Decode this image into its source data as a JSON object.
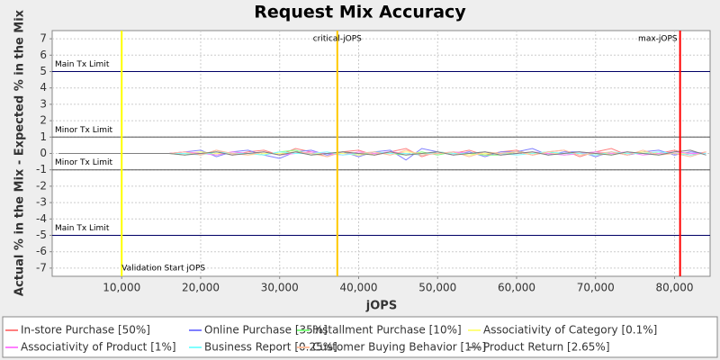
{
  "chart_data": {
    "type": "line",
    "title": "Request Mix Accuracy",
    "x_label": "jOPS",
    "y_label": "Actual % in the Mix - Expected % in the Mix",
    "xlim": [
      1200,
      84500
    ],
    "ylim": [
      -7.5,
      7.5
    ],
    "xticks": [
      {
        "value": 10000,
        "label": "10,000"
      },
      {
        "value": 20000,
        "label": "20,000"
      },
      {
        "value": 30000,
        "label": "30,000"
      },
      {
        "value": 40000,
        "label": "40,000"
      },
      {
        "value": 50000,
        "label": "50,000"
      },
      {
        "value": 60000,
        "label": "60,000"
      },
      {
        "value": 70000,
        "label": "70,000"
      },
      {
        "value": 80000,
        "label": "80,000"
      }
    ],
    "yticks": [
      -7,
      -6,
      -5,
      -4,
      -3,
      -2,
      -1,
      0,
      1,
      2,
      3,
      4,
      5,
      6,
      7
    ],
    "grid": true,
    "legend": "bottom",
    "limits": [
      {
        "value": 5,
        "label": "Main Tx Limit"
      },
      {
        "value": 1,
        "label": "Minor Tx Limit"
      },
      {
        "value": -1,
        "label": "Minor Tx Limit"
      },
      {
        "value": -5,
        "label": "Main Tx Limit"
      }
    ],
    "markers": [
      {
        "value": 10000,
        "label": "Validation Start jOPS",
        "color": "#ffff00",
        "label_anchor": "start",
        "label_side": "bottom"
      },
      {
        "value": 37300,
        "label": "critical-jOPS",
        "color": "#ffc800",
        "label_anchor": "middle",
        "label_side": "top"
      },
      {
        "value": 80700,
        "label": "max-jOPS",
        "color": "#ff0000",
        "label_anchor": "end",
        "label_side": "top"
      }
    ],
    "x": [
      2000,
      4000,
      6000,
      8000,
      10000,
      12000,
      14000,
      16000,
      18000,
      20000,
      22000,
      24000,
      26000,
      28000,
      30000,
      32000,
      34000,
      36000,
      38000,
      40000,
      42000,
      44000,
      46000,
      48000,
      50000,
      52000,
      54000,
      56000,
      58000,
      60000,
      62000,
      64000,
      66000,
      68000,
      70000,
      72000,
      74000,
      76000,
      78000,
      80000,
      82000,
      84000
    ],
    "series": [
      {
        "name": "In-store Purchase [50%]",
        "color": "#ff7f7f",
        "values": [
          0,
          0,
          0,
          0,
          0,
          0,
          0,
          0,
          0.1,
          -0.1,
          0.2,
          -0.1,
          0.1,
          0.2,
          -0.1,
          0.3,
          0.1,
          -0.2,
          0.1,
          0.2,
          -0.1,
          0.1,
          0.3,
          -0.2,
          0.1,
          0,
          0.2,
          -0.1,
          0.1,
          0.2,
          -0.1,
          0.1,
          0.2,
          -0.2,
          0.1,
          0.3,
          -0.1,
          0.1,
          0,
          0.2,
          -0.1,
          0.1
        ]
      },
      {
        "name": "Online Purchase [35%]",
        "color": "#7f7fff",
        "values": [
          0,
          0,
          0,
          0,
          0,
          0,
          0,
          0,
          0.1,
          0.2,
          -0.2,
          0.1,
          0.2,
          -0.1,
          -0.3,
          0.1,
          0.2,
          -0.1,
          0.1,
          -0.2,
          0.1,
          0.2,
          -0.4,
          0.3,
          0.1,
          -0.1,
          0.1,
          -0.2,
          0.1,
          0.1,
          0.3,
          -0.1,
          0.1,
          0.1,
          -0.2,
          0.1,
          -0.1,
          0.1,
          0.2,
          -0.1,
          0.1,
          0
        ]
      },
      {
        "name": "Installment Purchase [10%]",
        "color": "#7fff7f",
        "values": [
          0,
          0,
          0,
          0,
          0,
          0,
          0,
          0,
          -0.1,
          0.1,
          -0.1,
          0.1,
          0,
          -0.1,
          0.1,
          0.2,
          -0.1,
          0,
          0.1,
          -0.1,
          0.1,
          0,
          -0.1,
          0.1,
          -0.1,
          0.1,
          0,
          -0.1,
          -0.1,
          0.1,
          0,
          0.1,
          -0.1,
          0,
          0.1,
          -0.1,
          0.1,
          0,
          -0.1,
          0.1,
          0,
          0
        ]
      },
      {
        "name": "Associativity of Category [0.1%]",
        "color": "#ffff7f",
        "values": [
          0,
          0,
          0,
          0,
          0,
          0,
          0,
          0,
          0,
          0.1,
          0,
          0,
          -0.1,
          0,
          0,
          0.1,
          0,
          0,
          0,
          -0.1,
          0,
          0,
          0.1,
          0,
          0,
          0,
          -0.1,
          0,
          0,
          0.1,
          0,
          0,
          0,
          0,
          -0.1,
          0,
          0,
          0.1,
          0,
          0,
          0,
          0
        ]
      },
      {
        "name": "Associativity of Product [1%]",
        "color": "#ff7fff",
        "values": [
          0,
          0,
          0,
          0,
          0,
          0,
          0,
          0,
          0.1,
          0,
          -0.1,
          0.1,
          0,
          0.1,
          -0.1,
          0,
          0.1,
          0,
          -0.1,
          0.1,
          0,
          0.1,
          0,
          -0.1,
          0,
          0.1,
          0,
          0.1,
          -0.1,
          0,
          0.1,
          0,
          -0.1,
          0,
          0.1,
          0,
          0.1,
          -0.1,
          0,
          0.1,
          0,
          0
        ]
      },
      {
        "name": "Business Report [0.25%]",
        "color": "#7fffff",
        "values": [
          0,
          0,
          0,
          0,
          0,
          0,
          0,
          0,
          0,
          -0.1,
          0.1,
          0,
          0,
          -0.1,
          0.1,
          0,
          0,
          0.1,
          -0.1,
          0,
          0.1,
          0,
          0,
          -0.1,
          0.1,
          0,
          0,
          0.1,
          0,
          -0.1,
          0,
          0.1,
          0,
          0,
          -0.1,
          0.1,
          0,
          0,
          0.1,
          0,
          -0.1,
          0
        ]
      },
      {
        "name": "Customer Buying Behavior [1%]",
        "color": "#ffbf9f",
        "values": [
          0,
          0,
          0,
          0,
          0,
          0,
          0,
          0,
          0.1,
          -0.1,
          0.2,
          0,
          -0.1,
          0.1,
          -0.1,
          0.1,
          0,
          -0.2,
          0.1,
          0,
          0.1,
          -0.1,
          0.2,
          -0.1,
          0,
          0.1,
          -0.2,
          0.1,
          0,
          0.1,
          -0.1,
          0.1,
          0.2,
          -0.1,
          0,
          0.1,
          -0.1,
          0.2,
          -0.1,
          0,
          -0.2,
          0.1
        ]
      },
      {
        "name": "Product Return [2.65%]",
        "color": "#7f7f7f",
        "values": [
          0,
          0,
          0,
          0,
          0,
          0,
          0,
          0,
          -0.1,
          0,
          0.1,
          -0.1,
          0,
          0.1,
          -0.1,
          0.1,
          -0.1,
          0,
          0.1,
          0,
          -0.1,
          0.1,
          -0.1,
          0,
          0.1,
          -0.1,
          0,
          0.1,
          -0.1,
          0,
          0.1,
          -0.1,
          0,
          0.1,
          0,
          -0.1,
          0.1,
          0,
          -0.1,
          0.1,
          0.2,
          -0.1
        ]
      }
    ]
  }
}
